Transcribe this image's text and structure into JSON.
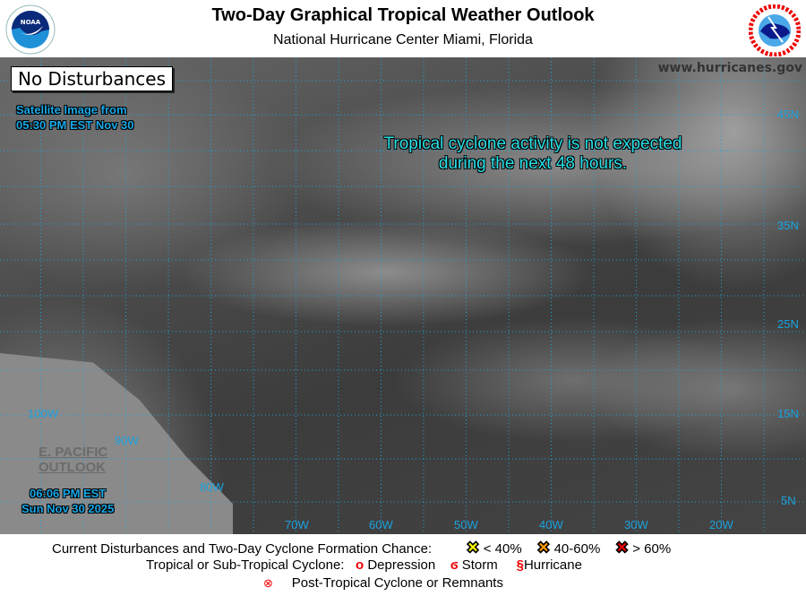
{
  "header": {
    "title": "Two-Day Graphical Tropical Weather Outlook",
    "subtitle": "National Hurricane Center  Miami, Florida",
    "left_logo": "NOAA",
    "right_logo": "NATIONAL WEATHER SERVICE"
  },
  "map": {
    "status_box": "No Disturbances",
    "satellite_line1": "Satellite Image from",
    "satellite_line2": "05:30 PM EST Nov 30",
    "message_line1": "Tropical cyclone activity is not expected",
    "message_line2": "during the next 48 hours.",
    "website": "www.hurricanes.gov",
    "epac_line1": "E. PACIFIC",
    "epac_line2": "OUTLOOK",
    "issue_time": "06:06 PM EST",
    "issue_date": "Sun Nov 30 2025",
    "lat_labels": [
      "45N",
      "35N",
      "25N",
      "15N",
      "5N"
    ],
    "lon_labels": [
      "100W",
      "90W",
      "80W",
      "70W",
      "60W",
      "50W",
      "40W",
      "30W",
      "20W"
    ],
    "grid_color": "#1aa3e0"
  },
  "legend": {
    "formation_label": "Current Disturbances and Two-Day Cyclone Formation Chance:",
    "low": "< 40%",
    "low_color": "#ffff00",
    "medium": "40-60%",
    "medium_color": "#ff9900",
    "high": "> 60%",
    "high_color": "#ff0000",
    "cyclone_label": "Tropical or Sub-Tropical Cyclone:",
    "depression": "Depression",
    "storm": "Storm",
    "hurricane": "Hurricane",
    "post_tropical": "Post-Tropical Cyclone or Remnants"
  }
}
